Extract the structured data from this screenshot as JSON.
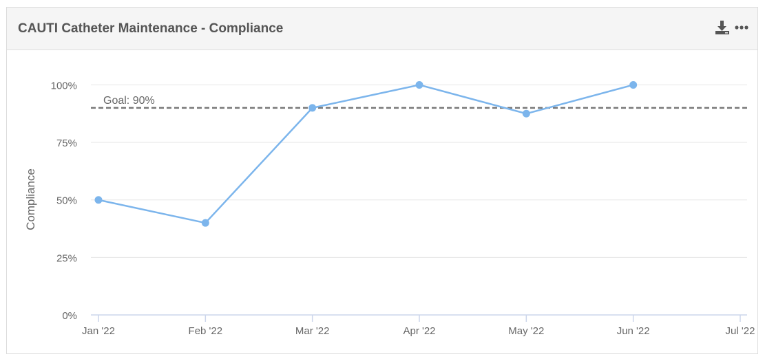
{
  "panel": {
    "title": "CAUTI Catheter Maintenance - Compliance",
    "actions": {
      "download_icon": "download-icon",
      "more_icon": "more-options-icon"
    }
  },
  "chart_data": {
    "type": "line",
    "categories": [
      "Jan '22",
      "Feb '22",
      "Mar '22",
      "Apr '22",
      "May '22",
      "Jun '22",
      "Jul '22"
    ],
    "series": [
      {
        "values": [
          50,
          40,
          90,
          100,
          87.5,
          100,
          null
        ],
        "color": "#7cb5ec"
      }
    ],
    "ylabel": "Compliance",
    "yticks": [
      "0%",
      "25%",
      "50%",
      "75%",
      "100%"
    ],
    "ylim": [
      0,
      110
    ],
    "grid": true,
    "goal": {
      "label": "Goal: 90%",
      "value": 90,
      "color": "#777777"
    },
    "colors": {
      "line": "#7cb5ec",
      "grid": "#e6e6e6",
      "axis": "#ccd6eb",
      "text": "#666666"
    }
  }
}
